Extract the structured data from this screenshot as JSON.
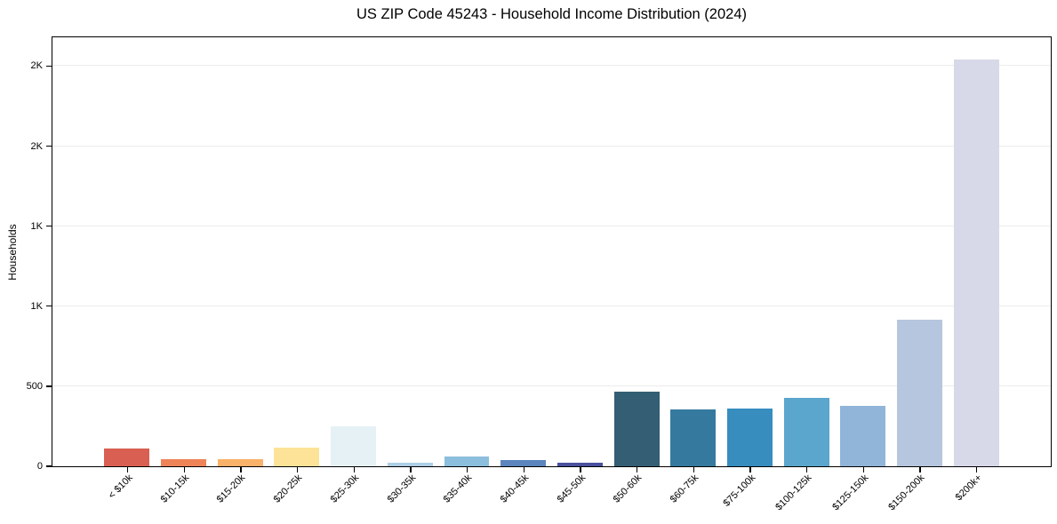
{
  "chart_data": {
    "type": "bar",
    "title": "US ZIP Code 45243 - Household Income Distribution (2024)",
    "xlabel": "",
    "ylabel": "Households",
    "categories": [
      "< $10k",
      "$10-15k",
      "$15-20k",
      "$20-25k",
      "$25-30k",
      "$30-35k",
      "$35-40k",
      "$40-45k",
      "$45-50k",
      "$50-60k",
      "$60-75k",
      "$75-100k",
      "$100-125k",
      "$125-150k",
      "$150-200k",
      "$200k+"
    ],
    "values": [
      110,
      45,
      45,
      115,
      250,
      20,
      60,
      40,
      25,
      465,
      355,
      360,
      430,
      375,
      915,
      2540
    ],
    "bar_colors": [
      "#d95f52",
      "#ef8358",
      "#f9b269",
      "#fce398",
      "#e6f1f5",
      "#aecfe5",
      "#8cbedd",
      "#5c85bd",
      "#4a509e",
      "#335e74",
      "#357a9e",
      "#388dbf",
      "#5ba6cc",
      "#90b5d8",
      "#b5c6de",
      "#d7d9e8"
    ],
    "ylim": [
      0,
      2680
    ],
    "yticks": [
      {
        "value": 0,
        "label": "0"
      },
      {
        "value": 500,
        "label": "500"
      },
      {
        "value": 1000,
        "label": "1K"
      },
      {
        "value": 1500,
        "label": "1K"
      },
      {
        "value": 2000,
        "label": "2K"
      },
      {
        "value": 2500,
        "label": "2K"
      }
    ],
    "grid": "horizontal",
    "legend": "none",
    "x_label_rotation_deg": 45
  },
  "colors": {
    "background": "#ffffff",
    "spine": "#000000",
    "gridline": "#ececec",
    "text": "#000000"
  }
}
